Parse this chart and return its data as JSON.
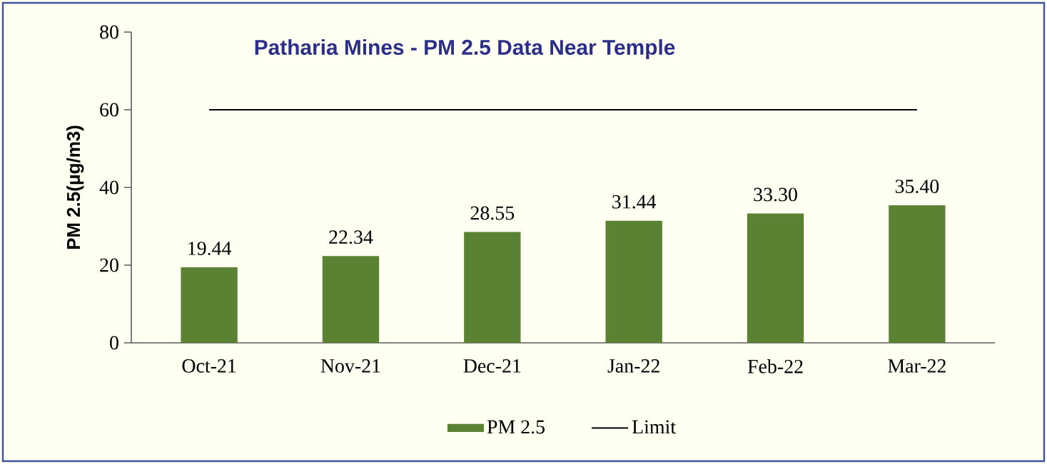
{
  "chart_data": {
    "type": "bar",
    "title": "Patharia Mines - PM 2.5 Data Near Temple",
    "ylabel": "PM 2.5(μg/m3)",
    "categories": [
      "Oct-21",
      "Nov-21",
      "Dec-21",
      "Jan-22",
      "Feb-22",
      "Mar-22"
    ],
    "series": [
      {
        "name": "PM 2.5",
        "color": "#5b8233",
        "values": [
          19.44,
          22.34,
          28.55,
          31.44,
          33.3,
          35.4
        ],
        "value_labels": [
          "19.44",
          "22.34",
          "28.55",
          "31.44",
          "33.30",
          "35.40"
        ]
      },
      {
        "name": "Limit",
        "type": "line",
        "color": "#000000",
        "values": [
          60,
          60,
          60,
          60,
          60,
          60
        ]
      }
    ],
    "ylim": [
      0,
      80
    ],
    "yticks": [
      0,
      20,
      40,
      60,
      80
    ],
    "legend": "bottom"
  }
}
